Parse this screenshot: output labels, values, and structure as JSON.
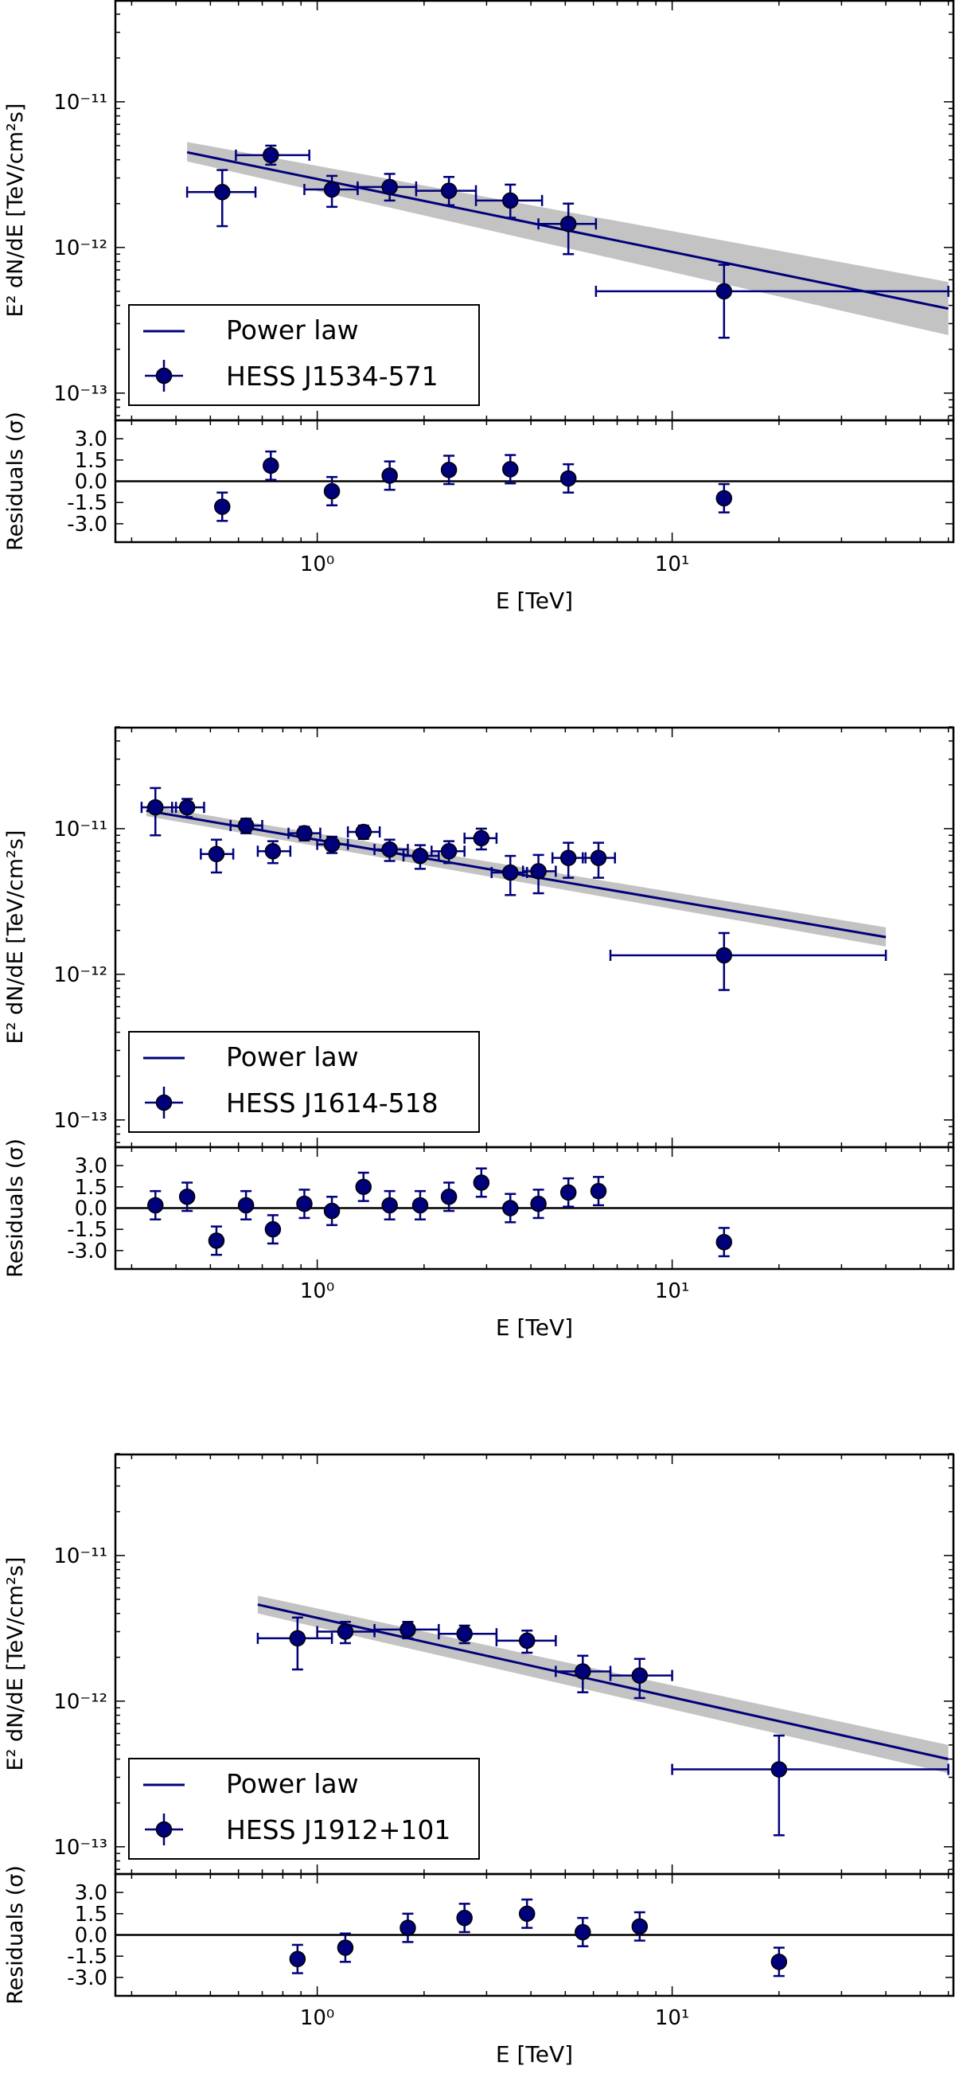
{
  "figure": {
    "xlabel": "E [TeV]",
    "ylabel": "E² dN/dE [TeV/cm²s]",
    "residual_label": "Residuals (σ)",
    "residual_ticks": [
      "3.0",
      "1.5",
      "0.0",
      "-1.5",
      "-3.0"
    ],
    "x_ticks": [
      "10⁰",
      "10¹"
    ],
    "y_ticks": [
      "10⁻¹¹",
      "10⁻¹²",
      "10⁻¹³"
    ]
  },
  "colors": {
    "data": "#00007a",
    "band": "#c3c3c3",
    "axis": "#000000"
  },
  "chart_data": [
    {
      "type": "scatter",
      "source": "HESS J1534-571",
      "legend": [
        "Power law",
        "HESS J1534-571"
      ],
      "xlim": [
        0.27,
        62
      ],
      "ylim": [
        6.5e-14,
        5e-11
      ],
      "residual_ylim": [
        -4.3,
        4.3
      ],
      "model": {
        "name": "Power law",
        "e_min": 0.43,
        "e_max": 60,
        "f_start": 4.5e-12,
        "f_end": 3.8e-13,
        "band_start": [
          3.9e-12,
          5.3e-12
        ],
        "band_end": [
          2.5e-13,
          5.8e-13
        ]
      },
      "points": [
        {
          "e": 0.54,
          "e_lo": 0.43,
          "e_hi": 0.67,
          "f": 2.4e-12,
          "f_lo": 1.4e-12,
          "f_hi": 3.4e-12,
          "res": -1.8,
          "res_err": 1.0
        },
        {
          "e": 0.74,
          "e_lo": 0.59,
          "e_hi": 0.95,
          "f": 4.3e-12,
          "f_lo": 3.7e-12,
          "f_hi": 5e-12,
          "res": 1.1,
          "res_err": 1.0
        },
        {
          "e": 1.1,
          "e_lo": 0.92,
          "e_hi": 1.3,
          "f": 2.5e-12,
          "f_lo": 1.9e-12,
          "f_hi": 3.1e-12,
          "res": -0.7,
          "res_err": 1.0
        },
        {
          "e": 1.6,
          "e_lo": 1.3,
          "e_hi": 1.9,
          "f": 2.6e-12,
          "f_lo": 2.1e-12,
          "f_hi": 3.2e-12,
          "res": 0.4,
          "res_err": 1.0
        },
        {
          "e": 2.35,
          "e_lo": 1.9,
          "e_hi": 2.8,
          "f": 2.45e-12,
          "f_lo": 1.95e-12,
          "f_hi": 3.05e-12,
          "res": 0.8,
          "res_err": 1.0
        },
        {
          "e": 3.5,
          "e_lo": 2.8,
          "e_hi": 4.3,
          "f": 2.1e-12,
          "f_lo": 1.6e-12,
          "f_hi": 2.7e-12,
          "res": 0.85,
          "res_err": 1.0
        },
        {
          "e": 5.1,
          "e_lo": 4.2,
          "e_hi": 6.1,
          "f": 1.45e-12,
          "f_lo": 9e-13,
          "f_hi": 2e-12,
          "res": 0.2,
          "res_err": 1.0
        },
        {
          "e": 14,
          "e_lo": 6.1,
          "e_hi": 60,
          "f": 5e-13,
          "f_lo": 2.4e-13,
          "f_hi": 7.6e-13,
          "res": -1.2,
          "res_err": 1.0
        }
      ]
    },
    {
      "type": "scatter",
      "source": "HESS J1614-518",
      "legend": [
        "Power law",
        "HESS J1614-518"
      ],
      "xlim": [
        0.27,
        62
      ],
      "ylim": [
        6.5e-14,
        5e-11
      ],
      "residual_ylim": [
        -4.3,
        4.3
      ],
      "model": {
        "name": "Power law",
        "e_min": 0.33,
        "e_max": 40,
        "f_start": 1.33e-11,
        "f_end": 1.8e-12,
        "band_start": [
          1.22e-11,
          1.45e-11
        ],
        "band_end": [
          1.55e-12,
          2.1e-12
        ]
      },
      "points": [
        {
          "e": 0.35,
          "e_lo": 0.32,
          "e_hi": 0.4,
          "f": 1.4e-11,
          "f_lo": 9e-12,
          "f_hi": 1.9e-11,
          "res": 0.2,
          "res_err": 1.0
        },
        {
          "e": 0.43,
          "e_lo": 0.39,
          "e_hi": 0.48,
          "f": 1.4e-11,
          "f_lo": 1.2e-11,
          "f_hi": 1.6e-11,
          "res": 0.8,
          "res_err": 1.0
        },
        {
          "e": 0.52,
          "e_lo": 0.47,
          "e_hi": 0.58,
          "f": 6.7e-12,
          "f_lo": 5e-12,
          "f_hi": 8.4e-12,
          "res": -2.3,
          "res_err": 1.0
        },
        {
          "e": 0.63,
          "e_lo": 0.57,
          "e_hi": 0.7,
          "f": 1.05e-11,
          "f_lo": 9.3e-12,
          "f_hi": 1.17e-11,
          "res": 0.2,
          "res_err": 1.0
        },
        {
          "e": 0.75,
          "e_lo": 0.68,
          "e_hi": 0.84,
          "f": 7e-12,
          "f_lo": 5.8e-12,
          "f_hi": 8.2e-12,
          "res": -1.5,
          "res_err": 1.0
        },
        {
          "e": 0.92,
          "e_lo": 0.83,
          "e_hi": 1.02,
          "f": 9.3e-12,
          "f_lo": 8.3e-12,
          "f_hi": 1.03e-11,
          "res": 0.3,
          "res_err": 1.0
        },
        {
          "e": 1.1,
          "e_lo": 1.0,
          "e_hi": 1.22,
          "f": 7.8e-12,
          "f_lo": 6.8e-12,
          "f_hi": 8.8e-12,
          "res": -0.2,
          "res_err": 1.0
        },
        {
          "e": 1.35,
          "e_lo": 1.22,
          "e_hi": 1.5,
          "f": 9.5e-12,
          "f_lo": 8.5e-12,
          "f_hi": 1.05e-11,
          "res": 1.5,
          "res_err": 1.0
        },
        {
          "e": 1.6,
          "e_lo": 1.45,
          "e_hi": 1.8,
          "f": 7.2e-12,
          "f_lo": 6e-12,
          "f_hi": 8.4e-12,
          "res": 0.2,
          "res_err": 1.0
        },
        {
          "e": 1.95,
          "e_lo": 1.75,
          "e_hi": 2.2,
          "f": 6.5e-12,
          "f_lo": 5.3e-12,
          "f_hi": 7.7e-12,
          "res": 0.2,
          "res_err": 1.0
        },
        {
          "e": 2.35,
          "e_lo": 2.1,
          "e_hi": 2.6,
          "f": 7e-12,
          "f_lo": 5.8e-12,
          "f_hi": 8.2e-12,
          "res": 0.8,
          "res_err": 1.0
        },
        {
          "e": 2.9,
          "e_lo": 2.6,
          "e_hi": 3.2,
          "f": 8.6e-12,
          "f_lo": 7.2e-12,
          "f_hi": 1e-11,
          "res": 1.8,
          "res_err": 1.0
        },
        {
          "e": 3.5,
          "e_lo": 3.1,
          "e_hi": 3.9,
          "f": 5e-12,
          "f_lo": 3.5e-12,
          "f_hi": 6.5e-12,
          "res": 0.0,
          "res_err": 1.0
        },
        {
          "e": 4.2,
          "e_lo": 3.8,
          "e_hi": 4.7,
          "f": 5.1e-12,
          "f_lo": 3.6e-12,
          "f_hi": 6.6e-12,
          "res": 0.3,
          "res_err": 1.0
        },
        {
          "e": 5.1,
          "e_lo": 4.6,
          "e_hi": 5.7,
          "f": 6.3e-12,
          "f_lo": 4.6e-12,
          "f_hi": 8e-12,
          "res": 1.1,
          "res_err": 1.0
        },
        {
          "e": 6.2,
          "e_lo": 5.6,
          "e_hi": 6.9,
          "f": 6.3e-12,
          "f_lo": 4.6e-12,
          "f_hi": 8e-12,
          "res": 1.2,
          "res_err": 1.0
        },
        {
          "e": 14,
          "e_lo": 6.7,
          "e_hi": 40,
          "f": 1.35e-12,
          "f_lo": 7.8e-13,
          "f_hi": 1.92e-12,
          "res": -2.4,
          "res_err": 1.0
        }
      ]
    },
    {
      "type": "scatter",
      "source": "HESS J1912+101",
      "legend": [
        "Power law",
        "HESS J1912+101"
      ],
      "xlim": [
        0.27,
        62
      ],
      "ylim": [
        6.5e-14,
        5e-11
      ],
      "residual_ylim": [
        -4.3,
        4.3
      ],
      "model": {
        "name": "Power law",
        "e_min": 0.68,
        "e_max": 60,
        "f_start": 4.6e-12,
        "f_end": 4e-13,
        "band_start": [
          4e-12,
          5.3e-12
        ],
        "band_end": [
          3.2e-13,
          5e-13
        ]
      },
      "points": [
        {
          "e": 0.88,
          "e_lo": 0.68,
          "e_hi": 1.1,
          "f": 2.7e-12,
          "f_lo": 1.65e-12,
          "f_hi": 3.75e-12,
          "res": -1.7,
          "res_err": 1.0
        },
        {
          "e": 1.2,
          "e_lo": 1.0,
          "e_hi": 1.45,
          "f": 3e-12,
          "f_lo": 2.5e-12,
          "f_hi": 3.5e-12,
          "res": -0.9,
          "res_err": 1.0
        },
        {
          "e": 1.8,
          "e_lo": 1.45,
          "e_hi": 2.2,
          "f": 3.1e-12,
          "f_lo": 2.7e-12,
          "f_hi": 3.5e-12,
          "res": 0.5,
          "res_err": 1.0
        },
        {
          "e": 2.6,
          "e_lo": 2.2,
          "e_hi": 3.2,
          "f": 2.9e-12,
          "f_lo": 2.5e-12,
          "f_hi": 3.3e-12,
          "res": 1.2,
          "res_err": 1.0
        },
        {
          "e": 3.9,
          "e_lo": 3.2,
          "e_hi": 4.7,
          "f": 2.6e-12,
          "f_lo": 2.15e-12,
          "f_hi": 3.05e-12,
          "res": 1.5,
          "res_err": 1.0
        },
        {
          "e": 5.6,
          "e_lo": 4.7,
          "e_hi": 6.7,
          "f": 1.6e-12,
          "f_lo": 1.15e-12,
          "f_hi": 2.05e-12,
          "res": 0.2,
          "res_err": 1.0
        },
        {
          "e": 8.1,
          "e_lo": 6.7,
          "e_hi": 10,
          "f": 1.5e-12,
          "f_lo": 1.05e-12,
          "f_hi": 1.95e-12,
          "res": 0.6,
          "res_err": 1.0
        },
        {
          "e": 20,
          "e_lo": 10,
          "e_hi": 60,
          "f": 3.4e-13,
          "f_lo": 1.2e-13,
          "f_hi": 5.8e-13,
          "res": -1.9,
          "res_err": 1.0
        }
      ]
    }
  ]
}
